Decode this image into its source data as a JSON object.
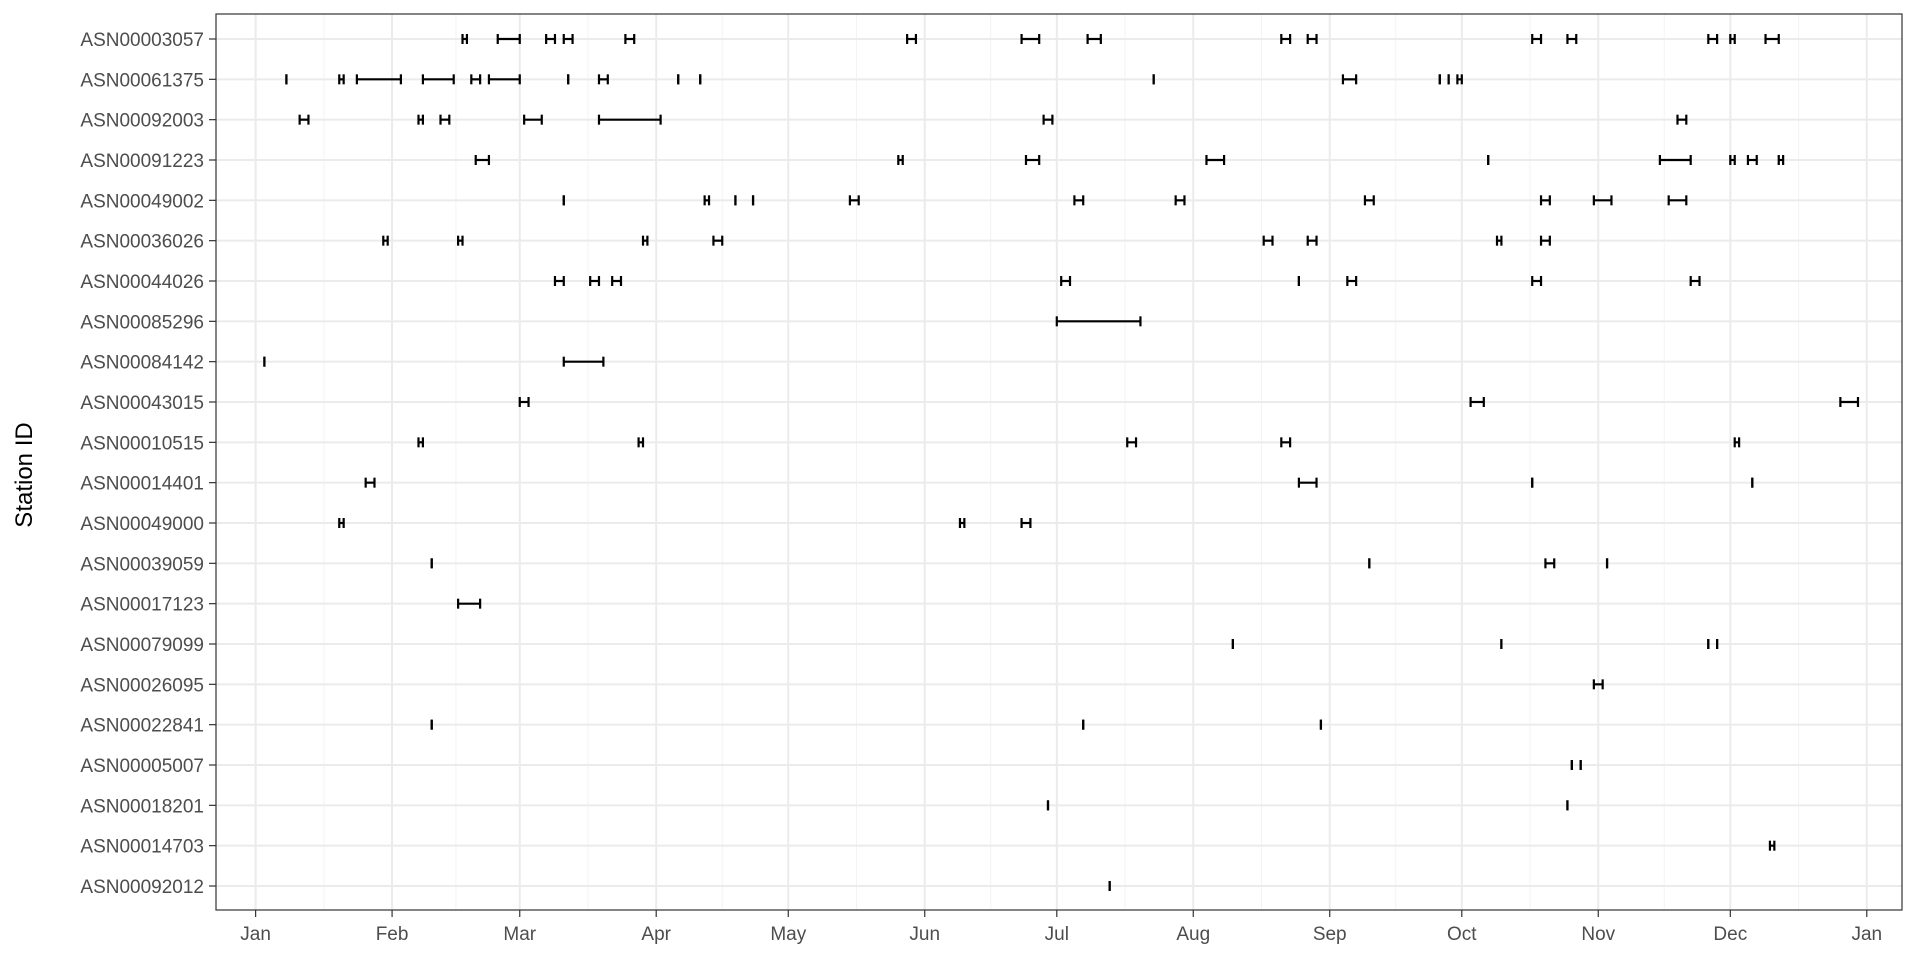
{
  "chart_data": {
    "type": "range",
    "title": "",
    "xlabel": "",
    "ylabel": "Station ID",
    "xlim": [
      "2023-12-23",
      "2025-01-09"
    ],
    "x_ticks": [
      {
        "date": "2024-01-01",
        "label": "Jan"
      },
      {
        "date": "2024-02-01",
        "label": "Feb"
      },
      {
        "date": "2024-03-01",
        "label": "Mar"
      },
      {
        "date": "2024-04-01",
        "label": "Apr"
      },
      {
        "date": "2024-05-01",
        "label": "May"
      },
      {
        "date": "2024-06-01",
        "label": "Jun"
      },
      {
        "date": "2024-07-01",
        "label": "Jul"
      },
      {
        "date": "2024-08-01",
        "label": "Aug"
      },
      {
        "date": "2024-09-01",
        "label": "Sep"
      },
      {
        "date": "2024-10-01",
        "label": "Oct"
      },
      {
        "date": "2024-11-01",
        "label": "Nov"
      },
      {
        "date": "2024-12-01",
        "label": "Dec"
      },
      {
        "date": "2025-01-01",
        "label": "Jan"
      }
    ],
    "grid": true,
    "color": "#000000",
    "stations": [
      {
        "id": "ASN00003057",
        "intervals": [
          [
            "2024-02-17",
            "2024-02-18"
          ],
          [
            "2024-02-25",
            "2024-03-01"
          ],
          [
            "2024-03-07",
            "2024-03-09"
          ],
          [
            "2024-03-11",
            "2024-03-13"
          ],
          [
            "2024-03-25",
            "2024-03-27"
          ],
          [
            "2024-05-28",
            "2024-05-30"
          ],
          [
            "2024-06-23",
            "2024-06-27"
          ],
          [
            "2024-07-08",
            "2024-07-11"
          ],
          [
            "2024-08-21",
            "2024-08-23"
          ],
          [
            "2024-08-27",
            "2024-08-29"
          ],
          [
            "2024-10-17",
            "2024-10-19"
          ],
          [
            "2024-10-25",
            "2024-10-27"
          ],
          [
            "2024-11-26",
            "2024-11-28"
          ],
          [
            "2024-12-01",
            "2024-12-02"
          ],
          [
            "2024-12-09",
            "2024-12-12"
          ]
        ]
      },
      {
        "id": "ASN00061375",
        "intervals": [
          [
            "2024-01-08",
            "2024-01-08"
          ],
          [
            "2024-01-20",
            "2024-01-21"
          ],
          [
            "2024-01-24",
            "2024-02-03"
          ],
          [
            "2024-02-08",
            "2024-02-15"
          ],
          [
            "2024-02-19",
            "2024-02-21"
          ],
          [
            "2024-02-23",
            "2024-03-01"
          ],
          [
            "2024-03-12",
            "2024-03-12"
          ],
          [
            "2024-03-19",
            "2024-03-21"
          ],
          [
            "2024-04-06",
            "2024-04-06"
          ],
          [
            "2024-04-11",
            "2024-04-11"
          ],
          [
            "2024-07-23",
            "2024-07-23"
          ],
          [
            "2024-09-04",
            "2024-09-07"
          ],
          [
            "2024-09-26",
            "2024-09-26"
          ],
          [
            "2024-09-28",
            "2024-09-28"
          ],
          [
            "2024-09-30",
            "2024-10-01"
          ]
        ]
      },
      {
        "id": "ASN00092003",
        "intervals": [
          [
            "2024-01-11",
            "2024-01-13"
          ],
          [
            "2024-02-07",
            "2024-02-08"
          ],
          [
            "2024-02-12",
            "2024-02-14"
          ],
          [
            "2024-03-02",
            "2024-03-06"
          ],
          [
            "2024-03-19",
            "2024-04-02"
          ],
          [
            "2024-06-28",
            "2024-06-30"
          ],
          [
            "2024-11-19",
            "2024-11-21"
          ]
        ]
      },
      {
        "id": "ASN00091223",
        "intervals": [
          [
            "2024-02-20",
            "2024-02-23"
          ],
          [
            "2024-05-26",
            "2024-05-27"
          ],
          [
            "2024-06-24",
            "2024-06-27"
          ],
          [
            "2024-08-04",
            "2024-08-08"
          ],
          [
            "2024-10-07",
            "2024-10-07"
          ],
          [
            "2024-11-15",
            "2024-11-22"
          ],
          [
            "2024-12-01",
            "2024-12-02"
          ],
          [
            "2024-12-05",
            "2024-12-07"
          ],
          [
            "2024-12-12",
            "2024-12-13"
          ]
        ]
      },
      {
        "id": "ASN00049002",
        "intervals": [
          [
            "2024-03-11",
            "2024-03-11"
          ],
          [
            "2024-04-12",
            "2024-04-13"
          ],
          [
            "2024-04-19",
            "2024-04-19"
          ],
          [
            "2024-04-23",
            "2024-04-23"
          ],
          [
            "2024-05-15",
            "2024-05-17"
          ],
          [
            "2024-07-05",
            "2024-07-07"
          ],
          [
            "2024-07-28",
            "2024-07-30"
          ],
          [
            "2024-09-09",
            "2024-09-11"
          ],
          [
            "2024-10-19",
            "2024-10-21"
          ],
          [
            "2024-10-31",
            "2024-11-04"
          ],
          [
            "2024-11-17",
            "2024-11-21"
          ]
        ]
      },
      {
        "id": "ASN00036026",
        "intervals": [
          [
            "2024-01-30",
            "2024-01-31"
          ],
          [
            "2024-02-16",
            "2024-02-17"
          ],
          [
            "2024-03-29",
            "2024-03-30"
          ],
          [
            "2024-04-14",
            "2024-04-16"
          ],
          [
            "2024-08-17",
            "2024-08-19"
          ],
          [
            "2024-08-27",
            "2024-08-29"
          ],
          [
            "2024-10-09",
            "2024-10-10"
          ],
          [
            "2024-10-19",
            "2024-10-21"
          ]
        ]
      },
      {
        "id": "ASN00044026",
        "intervals": [
          [
            "2024-03-09",
            "2024-03-11"
          ],
          [
            "2024-03-17",
            "2024-03-19"
          ],
          [
            "2024-03-22",
            "2024-03-24"
          ],
          [
            "2024-07-02",
            "2024-07-04"
          ],
          [
            "2024-08-25",
            "2024-08-25"
          ],
          [
            "2024-09-05",
            "2024-09-07"
          ],
          [
            "2024-10-17",
            "2024-10-19"
          ],
          [
            "2024-11-22",
            "2024-11-24"
          ]
        ]
      },
      {
        "id": "ASN00085296",
        "intervals": [
          [
            "2024-07-01",
            "2024-07-20"
          ]
        ]
      },
      {
        "id": "ASN00084142",
        "intervals": [
          [
            "2024-01-03",
            "2024-01-03"
          ],
          [
            "2024-03-11",
            "2024-03-20"
          ]
        ]
      },
      {
        "id": "ASN00043015",
        "intervals": [
          [
            "2024-03-01",
            "2024-03-03"
          ],
          [
            "2024-10-03",
            "2024-10-06"
          ],
          [
            "2024-12-26",
            "2024-12-30"
          ]
        ]
      },
      {
        "id": "ASN00010515",
        "intervals": [
          [
            "2024-02-07",
            "2024-02-08"
          ],
          [
            "2024-03-28",
            "2024-03-29"
          ],
          [
            "2024-07-17",
            "2024-07-19"
          ],
          [
            "2024-08-21",
            "2024-08-23"
          ],
          [
            "2024-12-02",
            "2024-12-03"
          ]
        ]
      },
      {
        "id": "ASN00014401",
        "intervals": [
          [
            "2024-01-26",
            "2024-01-28"
          ],
          [
            "2024-08-25",
            "2024-08-29"
          ],
          [
            "2024-10-17",
            "2024-10-17"
          ],
          [
            "2024-12-06",
            "2024-12-06"
          ]
        ]
      },
      {
        "id": "ASN00049000",
        "intervals": [
          [
            "2024-01-20",
            "2024-01-21"
          ],
          [
            "2024-06-09",
            "2024-06-10"
          ],
          [
            "2024-06-23",
            "2024-06-25"
          ]
        ]
      },
      {
        "id": "ASN00039059",
        "intervals": [
          [
            "2024-02-10",
            "2024-02-10"
          ],
          [
            "2024-09-10",
            "2024-09-10"
          ],
          [
            "2024-10-20",
            "2024-10-22"
          ],
          [
            "2024-11-03",
            "2024-11-03"
          ]
        ]
      },
      {
        "id": "ASN00017123",
        "intervals": [
          [
            "2024-02-16",
            "2024-02-21"
          ]
        ]
      },
      {
        "id": "ASN00079099",
        "intervals": [
          [
            "2024-08-10",
            "2024-08-10"
          ],
          [
            "2024-10-10",
            "2024-10-10"
          ],
          [
            "2024-11-26",
            "2024-11-26"
          ],
          [
            "2024-11-28",
            "2024-11-28"
          ]
        ]
      },
      {
        "id": "ASN00026095",
        "intervals": [
          [
            "2024-10-31",
            "2024-11-02"
          ]
        ]
      },
      {
        "id": "ASN00022841",
        "intervals": [
          [
            "2024-02-10",
            "2024-02-10"
          ],
          [
            "2024-07-07",
            "2024-07-07"
          ],
          [
            "2024-08-30",
            "2024-08-30"
          ]
        ]
      },
      {
        "id": "ASN00005007",
        "intervals": [
          [
            "2024-10-26",
            "2024-10-26"
          ],
          [
            "2024-10-28",
            "2024-10-28"
          ]
        ]
      },
      {
        "id": "ASN00018201",
        "intervals": [
          [
            "2024-06-29",
            "2024-06-29"
          ],
          [
            "2024-10-25",
            "2024-10-25"
          ]
        ]
      },
      {
        "id": "ASN00014703",
        "intervals": [
          [
            "2024-12-10",
            "2024-12-11"
          ]
        ]
      },
      {
        "id": "ASN00092012",
        "intervals": [
          [
            "2024-07-13",
            "2024-07-13"
          ]
        ]
      }
    ]
  }
}
